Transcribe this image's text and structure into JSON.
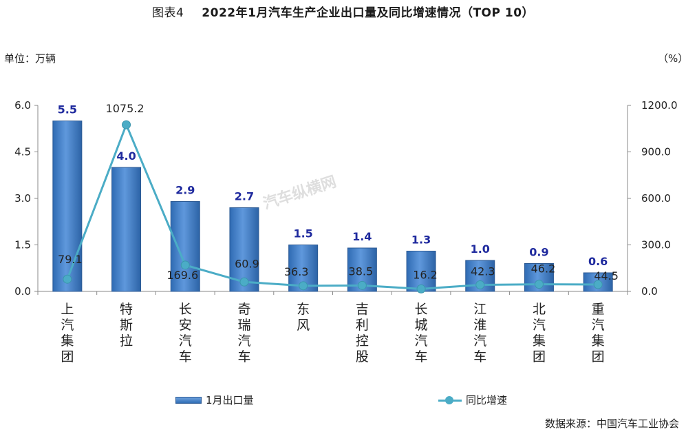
{
  "header": {
    "figure_label": "图表4",
    "title": "2022年1月汽车生产企业出口量及同比增速情况（TOP 10）"
  },
  "unit_left": "单位：万辆",
  "unit_right": "（%）",
  "source": "数据来源：中国汽车工业协会",
  "watermark": "汽车纵横网",
  "chart_data": {
    "type": "bar",
    "categories": [
      "上汽集团",
      "特斯拉",
      "长安汽车",
      "奇瑞汽车",
      "东风",
      "吉利控股",
      "长城汽车",
      "江淮汽车",
      "北汽集团",
      "重汽集团"
    ],
    "series": [
      {
        "name": "1月出口量",
        "type": "bar",
        "axis": "left",
        "values": [
          5.5,
          4.0,
          2.9,
          2.7,
          1.5,
          1.4,
          1.3,
          1.0,
          0.9,
          0.6
        ],
        "labels": [
          "5.5",
          "4.0",
          "2.9",
          "2.7",
          "1.5",
          "1.4",
          "1.3",
          "1.0",
          "0.9",
          "0.6"
        ]
      },
      {
        "name": "同比增速",
        "type": "line",
        "axis": "right",
        "values": [
          79.1,
          1075.2,
          169.6,
          60.9,
          36.3,
          38.5,
          16.2,
          42.3,
          46.2,
          44.5
        ],
        "labels": [
          "79.1",
          "1075.2",
          "169.6",
          "60.9",
          "36.3",
          "38.5",
          "16.2",
          "42.3",
          "46.2",
          "44.5"
        ]
      }
    ],
    "y_left": {
      "min": 0,
      "max": 6,
      "ticks": [
        "0.0",
        "1.5",
        "3.0",
        "4.5",
        "6.0"
      ]
    },
    "y_right": {
      "min": 0,
      "max": 1200,
      "ticks": [
        "0.0",
        "300.0",
        "600.0",
        "900.0",
        "1200.0"
      ]
    },
    "legend": "bottom",
    "colors": {
      "bar": "#3f7dc6",
      "bar_label": "#1f2a9e",
      "line": "#4bacc6"
    }
  }
}
